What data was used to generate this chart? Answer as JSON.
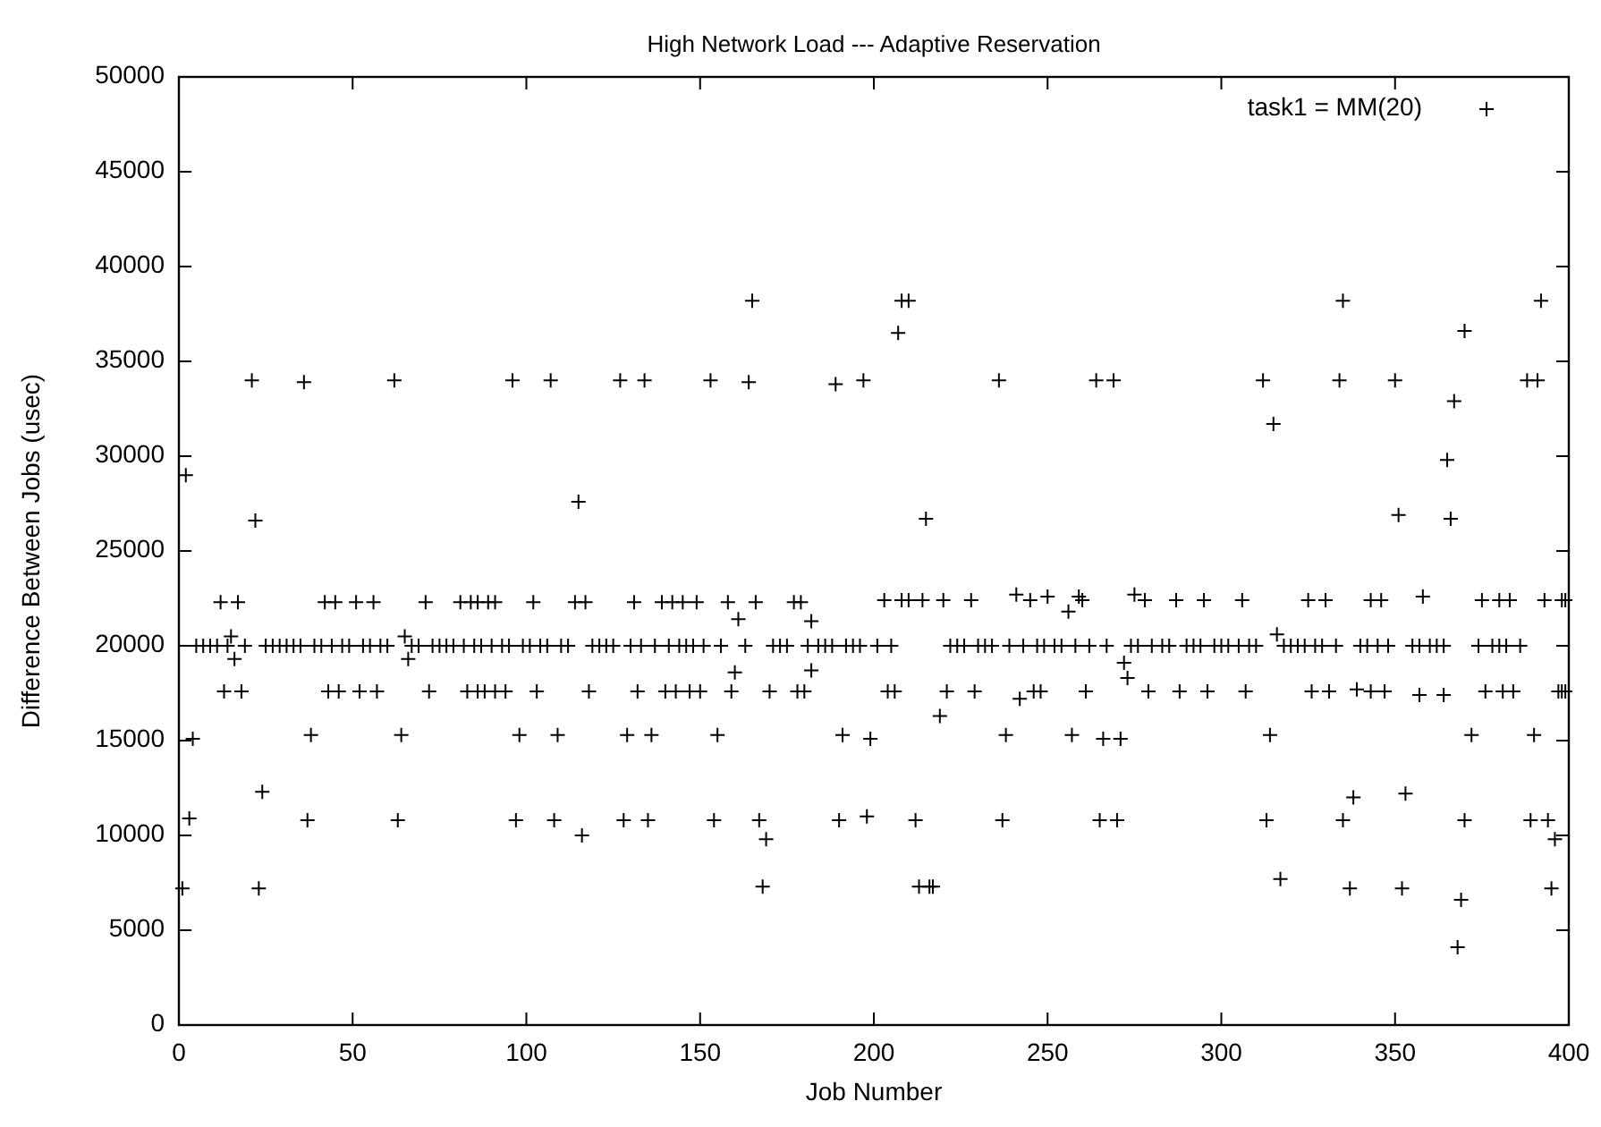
{
  "chart_data": {
    "type": "scatter",
    "title": "High Network Load --- Adaptive Reservation",
    "xlabel": "Job Number",
    "ylabel": "Difference Between Jobs (usec)",
    "xlim": [
      0,
      400
    ],
    "xticks": [
      0,
      50,
      100,
      150,
      200,
      250,
      300,
      350,
      400
    ],
    "ylim": [
      0,
      50000
    ],
    "yticks": [
      0,
      5000,
      10000,
      15000,
      20000,
      25000,
      30000,
      35000,
      40000,
      45000,
      50000
    ],
    "grid": false,
    "legend": "top right",
    "marker": "cross",
    "series": [
      {
        "name": "task1 = MM(20)",
        "color": "#000000",
        "x": [
          1,
          2,
          3,
          4,
          12,
          13,
          15,
          16,
          17,
          18,
          21,
          22,
          23,
          24,
          36,
          37,
          38,
          42,
          43,
          45,
          46,
          51,
          52,
          56,
          57,
          62,
          63,
          64,
          65,
          66,
          71,
          72,
          81,
          83,
          84,
          86,
          86,
          88,
          89,
          91,
          91,
          94,
          96,
          97,
          98,
          102,
          103,
          107,
          108,
          109,
          114,
          115,
          116,
          117,
          118,
          127,
          128,
          129,
          131,
          132,
          134,
          135,
          136,
          139,
          140,
          142,
          143,
          145,
          147,
          149,
          150,
          153,
          154,
          155,
          158,
          159,
          160,
          161,
          164,
          165,
          166,
          167,
          168,
          169,
          170,
          177,
          178,
          179,
          180,
          182,
          182,
          189,
          190,
          191,
          197,
          198,
          199,
          203,
          204,
          206,
          207,
          208,
          208,
          210,
          210,
          212,
          213,
          214,
          215,
          216,
          217,
          219,
          220,
          221,
          228,
          229,
          236,
          237,
          238,
          241,
          242,
          245,
          246,
          248,
          250,
          256,
          257,
          259,
          260,
          261,
          264,
          265,
          266,
          269,
          270,
          271,
          272,
          273,
          275,
          278,
          279,
          287,
          288,
          295,
          296,
          306,
          307,
          312,
          313,
          314,
          315,
          316,
          317,
          325,
          326,
          330,
          331,
          334,
          335,
          335,
          337,
          338,
          339,
          343,
          343,
          346,
          347,
          350,
          351,
          352,
          353,
          357,
          358,
          364,
          365,
          366,
          367,
          368,
          369,
          370,
          370,
          372,
          375,
          376,
          380,
          381,
          383,
          384,
          388,
          389,
          390,
          391,
          392,
          393,
          394,
          395,
          396,
          397,
          398,
          398,
          399,
          399,
          5,
          7,
          9,
          11,
          14,
          19,
          25,
          27,
          29,
          31,
          33,
          35,
          39,
          41,
          44,
          47,
          49,
          53,
          55,
          58,
          60,
          67,
          69,
          73,
          75,
          77,
          79,
          82,
          85,
          87,
          90,
          93,
          95,
          99,
          101,
          104,
          106,
          110,
          112,
          119,
          121,
          123,
          125,
          130,
          133,
          137,
          141,
          144,
          146,
          148,
          151,
          156,
          163,
          171,
          173,
          175,
          181,
          184,
          186,
          188,
          192,
          194,
          196,
          201,
          205,
          222,
          224,
          226,
          230,
          232,
          234,
          239,
          243,
          247,
          249,
          252,
          254,
          258,
          262,
          267,
          274,
          276,
          280,
          283,
          285,
          290,
          292,
          294,
          298,
          300,
          302,
          305,
          308,
          310,
          318,
          320,
          322,
          324,
          327,
          329,
          333,
          340,
          342,
          345,
          348,
          355,
          357,
          360,
          362,
          364,
          374,
          378,
          380,
          382,
          386
        ],
        "values": [
          7200,
          29000,
          10900,
          15100,
          22300,
          17600,
          20500,
          19300,
          22300,
          17600,
          34000,
          26600,
          7200,
          12300,
          33900,
          10800,
          15300,
          22300,
          17600,
          22300,
          17600,
          22300,
          17600,
          22300,
          17600,
          34000,
          10800,
          15300,
          20500,
          19300,
          22300,
          17600,
          22300,
          17600,
          22300,
          22300,
          17600,
          17600,
          22300,
          22300,
          17600,
          17600,
          34000,
          10800,
          15300,
          22300,
          17600,
          34000,
          10800,
          15300,
          22300,
          27600,
          10000,
          22300,
          17600,
          34000,
          10800,
          15300,
          22300,
          17600,
          34000,
          10800,
          15300,
          22300,
          17600,
          22300,
          17600,
          22300,
          17600,
          22300,
          17600,
          34000,
          10800,
          15300,
          22300,
          17600,
          18600,
          21400,
          33900,
          38200,
          22300,
          10800,
          7300,
          9800,
          17600,
          22300,
          17600,
          22300,
          17600,
          21300,
          18700,
          33800,
          10800,
          15300,
          34000,
          11000,
          15100,
          22400,
          17600,
          17600,
          36500,
          38200,
          22400,
          38200,
          22400,
          10800,
          7300,
          22400,
          26700,
          7300,
          7300,
          16300,
          22400,
          17600,
          22400,
          17600,
          34000,
          10800,
          15300,
          22700,
          17200,
          22400,
          17600,
          17600,
          22600,
          21800,
          15300,
          22600,
          22400,
          17600,
          34000,
          10800,
          15100,
          34000,
          10800,
          15100,
          19100,
          18300,
          22700,
          22400,
          17600,
          22400,
          17600,
          22400,
          17600,
          22400,
          17600,
          34000,
          10800,
          15300,
          31700,
          20600,
          7700,
          22400,
          17600,
          22400,
          17600,
          34000,
          38200,
          10800,
          7200,
          12000,
          17700,
          22400,
          17600,
          22400,
          17600,
          34000,
          26900,
          7200,
          12200,
          17400,
          22600,
          17400,
          29800,
          26700,
          32900,
          4100,
          6600,
          36600,
          10800,
          15300,
          22400,
          17600,
          22400,
          17600,
          22400,
          17600,
          34000,
          10800,
          15300,
          34000,
          38200,
          22400,
          10800,
          7200,
          9800,
          17600,
          22400,
          17600,
          22400,
          17600,
          20000,
          20000,
          20000,
          20000,
          20000,
          20000,
          20000,
          20000,
          20000,
          20000,
          20000,
          20000,
          20000,
          20000,
          20000,
          20000,
          20000,
          20000,
          20000,
          20000,
          20000,
          20000,
          20000,
          20000,
          20000,
          20000,
          20000,
          20000,
          20000,
          20000,
          20000,
          20000,
          20000,
          20000,
          20000,
          20000,
          20000,
          20000,
          20000,
          20000,
          20000,
          20000,
          20000,
          20000,
          20000,
          20000,
          20000,
          20000,
          20000,
          20000,
          20000,
          20000,
          20000,
          20000,
          20000,
          20000,
          20000,
          20000,
          20000,
          20000,
          20000,
          20000,
          20000,
          20000,
          20000,
          20000,
          20000,
          20000,
          20000,
          20000,
          20000,
          20000,
          20000,
          20000,
          20000,
          20000,
          20000,
          20000,
          20000,
          20000,
          20000,
          20000,
          20000,
          20000,
          20000,
          20000,
          20000,
          20000,
          20000,
          20000,
          20000,
          20000,
          20000,
          20000,
          20000,
          20000,
          20000,
          20000,
          20000,
          20000,
          20000,
          20000,
          20000,
          20000,
          20000,
          20000,
          20000,
          20000,
          20000,
          20000,
          20000,
          20000,
          20000,
          20000,
          20000
        ]
      }
    ]
  }
}
